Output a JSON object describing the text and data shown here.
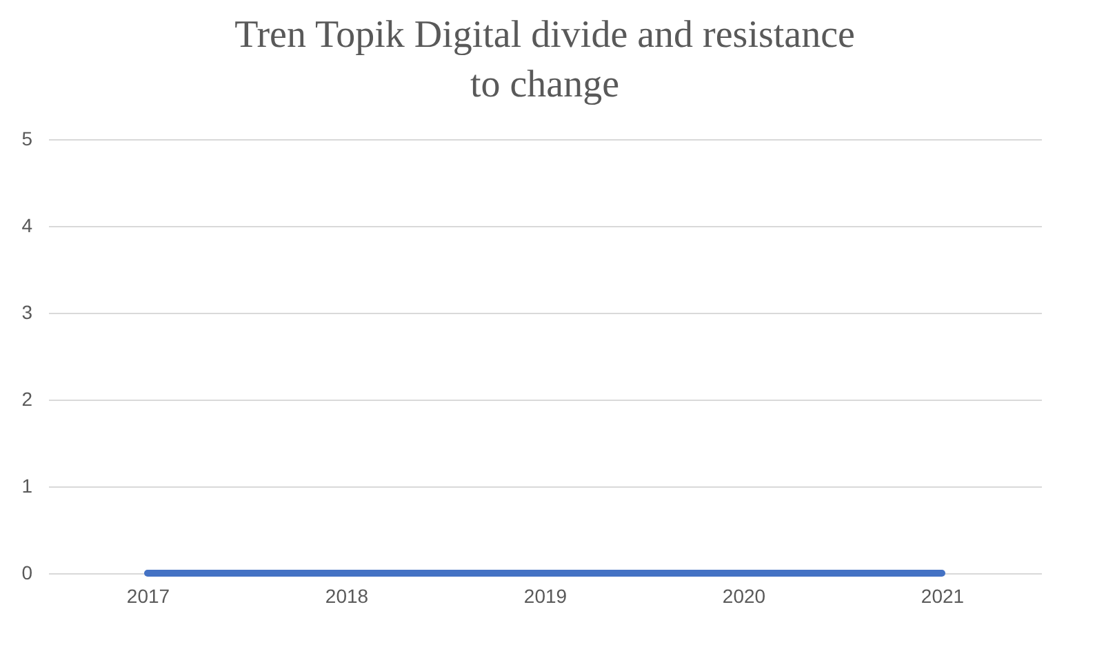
{
  "chart_data": {
    "type": "line",
    "title": "Tren Topik Digital divide and resistance to change",
    "categories": [
      "2017",
      "2018",
      "2019",
      "2020",
      "2021"
    ],
    "series": [
      {
        "color": "#4472c4",
        "values": [
          0,
          0,
          0,
          0,
          0
        ]
      }
    ],
    "ylim": [
      0,
      5
    ],
    "yticks": [
      0,
      1,
      2,
      3,
      4,
      5
    ],
    "grid": "y",
    "marker": "none",
    "line_style": "solid"
  }
}
